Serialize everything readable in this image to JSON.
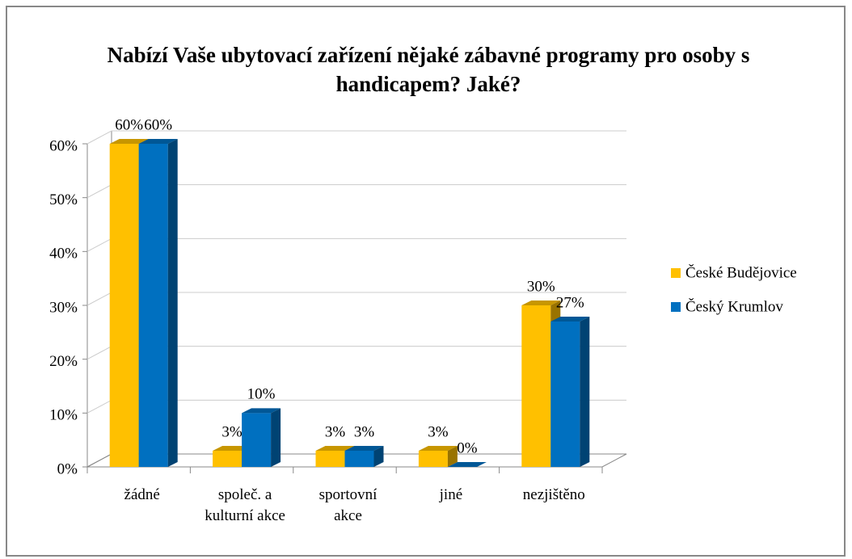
{
  "chart_data": {
    "type": "bar3d",
    "title": "Nabízí Vaše ubytovací  zařízení nějaké zábavné programy pro osoby s handicapem? Jaké?",
    "categories": [
      "žádné",
      "společ. a kulturní akce",
      "sportovní akce",
      "jiné",
      "nezjištěno"
    ],
    "series": [
      {
        "name": "České Budějovice",
        "color": "#ffc000",
        "values": [
          60,
          3,
          3,
          3,
          30
        ],
        "value_labels": [
          "60%",
          "3%",
          "3%",
          "3%",
          "30%"
        ]
      },
      {
        "name": "Český Krumlov",
        "color": "#0070c0",
        "values": [
          60,
          10,
          3,
          0,
          27
        ],
        "value_labels": [
          "60%",
          "10%",
          "3%",
          "0%",
          "27%"
        ]
      }
    ],
    "ylim": [
      0,
      60
    ],
    "yticks": [
      {
        "value": 0,
        "label": "0%"
      },
      {
        "value": 10,
        "label": "10%"
      },
      {
        "value": 20,
        "label": "20%"
      },
      {
        "value": 30,
        "label": "30%"
      },
      {
        "value": 40,
        "label": "40%"
      },
      {
        "value": 50,
        "label": "50%"
      },
      {
        "value": 60,
        "label": "60%"
      }
    ],
    "grid": true,
    "legend": "right"
  }
}
